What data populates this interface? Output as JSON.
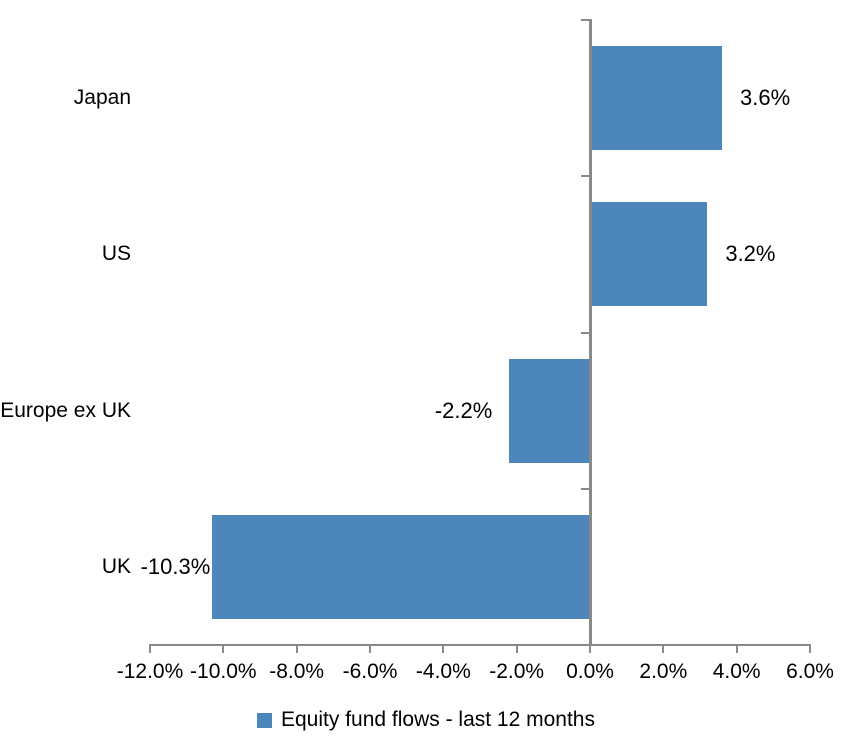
{
  "chart_data": {
    "type": "bar",
    "orientation": "horizontal",
    "title": "",
    "categories": [
      "Japan",
      "US",
      "Europe ex UK",
      "UK"
    ],
    "series": [
      {
        "name": "Equity fund flows - last 12 months",
        "values": [
          3.6,
          3.2,
          -2.2,
          -10.3
        ],
        "data_labels": [
          "3.6%",
          "3.2%",
          "-2.2%",
          "-10.3%"
        ]
      }
    ],
    "xlabel": "",
    "ylabel": "",
    "xlim": [
      -12,
      6
    ],
    "x_ticks": [
      -12,
      -10,
      -8,
      -6,
      -4,
      -2,
      0,
      2,
      4,
      6
    ],
    "x_tick_labels": [
      "-12.0%",
      "-10.0%",
      "-8.0%",
      "-6.0%",
      "-4.0%",
      "-2.0%",
      "0.0%",
      "2.0%",
      "4.0%",
      "6.0%"
    ],
    "grid": false,
    "legend_position": "bottom",
    "colors": {
      "bar": "#4D86BB",
      "axis": "#898989",
      "text": "#000000",
      "background": "#FFFFFF"
    }
  },
  "legend": {
    "label": "Equity fund flows - last 12 months"
  }
}
